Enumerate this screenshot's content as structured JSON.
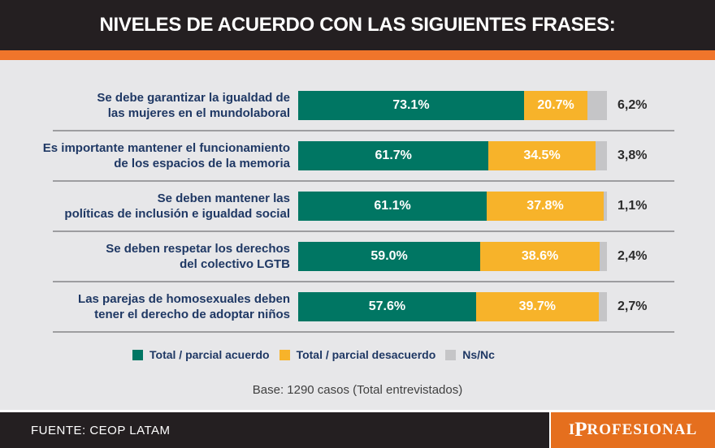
{
  "header": {
    "title": "NIVELES DE ACUERDO CON LAS SIGUIENTES FRASES:"
  },
  "colors": {
    "header_bg": "#241F21",
    "accent_stripe": "#F0752B",
    "body_bg": "#E7E7E9",
    "acuerdo": "#007663",
    "desacuerdo": "#F7B32A",
    "nsnc": "#C5C5C7",
    "label_text": "#1F3864",
    "footer_bg": "#241F21",
    "brand_bg": "#E56F1E"
  },
  "chart_data": {
    "type": "bar",
    "orientation": "horizontal",
    "stacked": true,
    "title": "NIVELES DE ACUERDO CON LAS SIGUIENTES FRASES:",
    "categories": [
      "Se debe garantizar la igualdad de las mujeres en el mundolaboral",
      "Es importante mantener el funcionamiento de los espacios de la memoria",
      "Se deben mantener las políticas de inclusión e igualdad social",
      "Se deben respetar los derechos del colectivo LGTB",
      "Las parejas de homosexuales deben tener el derecho de adoptar niños"
    ],
    "series": [
      {
        "name": "Total / parcial acuerdo",
        "values": [
          73.1,
          61.7,
          61.1,
          59.0,
          57.6
        ]
      },
      {
        "name": "Total / parcial desacuerdo",
        "values": [
          20.7,
          34.5,
          37.8,
          38.6,
          39.7
        ]
      },
      {
        "name": "Ns/Nc",
        "values": [
          6.2,
          3.8,
          1.1,
          2.4,
          2.7
        ]
      }
    ],
    "value_range": [
      0,
      100
    ],
    "grid": false,
    "legend_position": "bottom",
    "note": "Base: 1290 casos (Total entrevistados)"
  },
  "chart": {
    "rows": [
      {
        "label_lines": [
          "Se debe garantizar la igualdad de",
          "las mujeres en el mundolaboral"
        ],
        "acuerdo": 73.1,
        "desacuerdo": 20.7,
        "nsnc": 6.2,
        "acuerdo_label": "73.1%",
        "desacuerdo_label": "20.7%",
        "nsnc_label": "6,2%"
      },
      {
        "label_lines": [
          "Es importante mantener el funcionamiento",
          "de los espacios de la memoria"
        ],
        "acuerdo": 61.7,
        "desacuerdo": 34.5,
        "nsnc": 3.8,
        "acuerdo_label": "61.7%",
        "desacuerdo_label": "34.5%",
        "nsnc_label": "3,8%"
      },
      {
        "label_lines": [
          "Se deben mantener las",
          "políticas de inclusión e igualdad social"
        ],
        "acuerdo": 61.1,
        "desacuerdo": 37.8,
        "nsnc": 1.1,
        "acuerdo_label": "61.1%",
        "desacuerdo_label": "37.8%",
        "nsnc_label": "1,1%"
      },
      {
        "label_lines": [
          "Se deben respetar los derechos",
          "del colectivo LGTB"
        ],
        "acuerdo": 59.0,
        "desacuerdo": 38.6,
        "nsnc": 2.4,
        "acuerdo_label": "59.0%",
        "desacuerdo_label": "38.6%",
        "nsnc_label": "2,4%"
      },
      {
        "label_lines": [
          "Las parejas de homosexuales deben",
          "tener el derecho de adoptar niños"
        ],
        "acuerdo": 57.6,
        "desacuerdo": 39.7,
        "nsnc": 2.7,
        "acuerdo_label": "57.6%",
        "desacuerdo_label": "39.7%",
        "nsnc_label": "2,7%"
      }
    ],
    "base_note": "Base: 1290 casos (Total entrevistados)"
  },
  "legend": {
    "items": [
      {
        "label": "Total / parcial acuerdo",
        "color_key": "acuerdo"
      },
      {
        "label": "Total / parcial desacuerdo",
        "color_key": "desacuerdo"
      },
      {
        "label": "Ns/Nc",
        "color_key": "nsnc"
      }
    ]
  },
  "footer": {
    "source": "FUENTE: CEOP LATAM",
    "brand": {
      "first": "I",
      "cap": "P",
      "rest": "ROFESIONAL"
    }
  }
}
